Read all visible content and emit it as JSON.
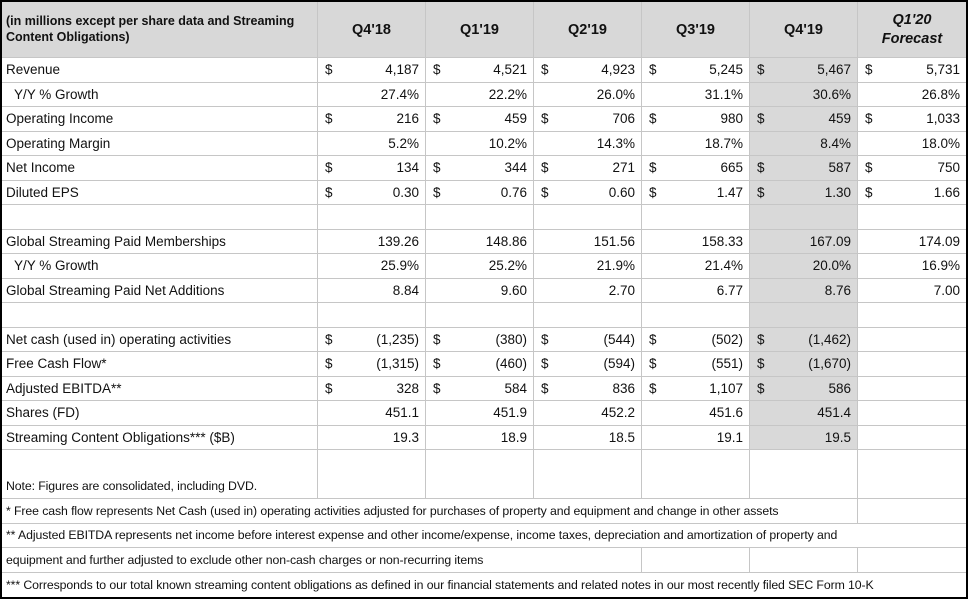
{
  "colors": {
    "header_bg": "#d8d8d8",
    "highlight_bg": "#d9d9d9",
    "grid": "#c6c6c6",
    "border": "#000000"
  },
  "table": {
    "currency_symbol": "$",
    "header": {
      "label": "(in millions except per share data and Streaming Content Obligations)",
      "columns": [
        "Q4'18",
        "Q1'19",
        "Q2'19",
        "Q3'19",
        "Q4'19"
      ],
      "forecast_column": {
        "line1": "Q1'20",
        "line2": "Forecast"
      }
    },
    "highlight_column_index": 4,
    "rows": [
      {
        "label": "Revenue",
        "dollar": true,
        "highlight": true,
        "values": [
          "4,187",
          "4,521",
          "4,923",
          "5,245",
          "5,467",
          "5,731"
        ]
      },
      {
        "label": "Y/Y % Growth",
        "indent": true,
        "highlight": true,
        "values": [
          "27.4%",
          "22.2%",
          "26.0%",
          "31.1%",
          "30.6%",
          "26.8%"
        ]
      },
      {
        "label": "Operating Income",
        "dollar": true,
        "highlight": true,
        "values": [
          "216",
          "459",
          "706",
          "980",
          "459",
          "1,033"
        ]
      },
      {
        "label": "Operating Margin",
        "highlight": true,
        "values": [
          "5.2%",
          "10.2%",
          "14.3%",
          "18.7%",
          "8.4%",
          "18.0%"
        ]
      },
      {
        "label": "Net Income",
        "dollar": true,
        "highlight": true,
        "values": [
          "134",
          "344",
          "271",
          "665",
          "587",
          "750"
        ]
      },
      {
        "label": "Diluted EPS",
        "dollar": true,
        "highlight": true,
        "values": [
          "0.30",
          "0.76",
          "0.60",
          "1.47",
          "1.30",
          "1.66"
        ]
      },
      {
        "blank": true,
        "highlight": true
      },
      {
        "label": "Global Streaming Paid Memberships",
        "highlight": true,
        "values": [
          "139.26",
          "148.86",
          "151.56",
          "158.33",
          "167.09",
          "174.09"
        ]
      },
      {
        "label": "Y/Y % Growth",
        "indent": true,
        "highlight": true,
        "values": [
          "25.9%",
          "25.2%",
          "21.9%",
          "21.4%",
          "20.0%",
          "16.9%"
        ]
      },
      {
        "label": "Global Streaming Paid Net Additions",
        "highlight": true,
        "values": [
          "8.84",
          "9.60",
          "2.70",
          "6.77",
          "8.76",
          "7.00"
        ]
      },
      {
        "blank": true,
        "highlight": true
      },
      {
        "label": "Net cash (used in) operating activities",
        "dollar": true,
        "highlight": true,
        "values": [
          "(1,235)",
          "(380)",
          "(544)",
          "(502)",
          "(1,462)",
          ""
        ]
      },
      {
        "label": "Free Cash Flow*",
        "dollar": true,
        "highlight": true,
        "values": [
          "(1,315)",
          "(460)",
          "(594)",
          "(551)",
          "(1,670)",
          ""
        ]
      },
      {
        "label": "Adjusted EBITDA**",
        "dollar": true,
        "highlight": true,
        "values": [
          "328",
          "584",
          "836",
          "1,107",
          "586",
          ""
        ]
      },
      {
        "label": "Shares (FD)",
        "highlight": true,
        "values": [
          "451.1",
          "451.9",
          "452.2",
          "451.6",
          "451.4",
          ""
        ]
      },
      {
        "label": "Streaming Content Obligations*** ($B)",
        "highlight": true,
        "values": [
          "19.3",
          "18.9",
          "18.5",
          "19.1",
          "19.5",
          ""
        ]
      },
      {
        "blank": true,
        "highlight": false
      }
    ],
    "note": "Note: Figures are consolidated, including DVD.",
    "footnotes": {
      "fcf": "* Free cash flow represents Net Cash (used in) operating activities adjusted for purchases of property and equipment and change in other assets",
      "ebitda_line1": "** Adjusted EBITDA represents net income before interest expense and other income/expense, income taxes, depreciation and amortization of property and",
      "ebitda_line2": "equipment and further adjusted to exclude other non-cash charges or non-recurring items",
      "sco": "*** Corresponds to our total known streaming content obligations as defined in our financial statements and related notes in our most recently filed SEC Form 10-K"
    }
  }
}
